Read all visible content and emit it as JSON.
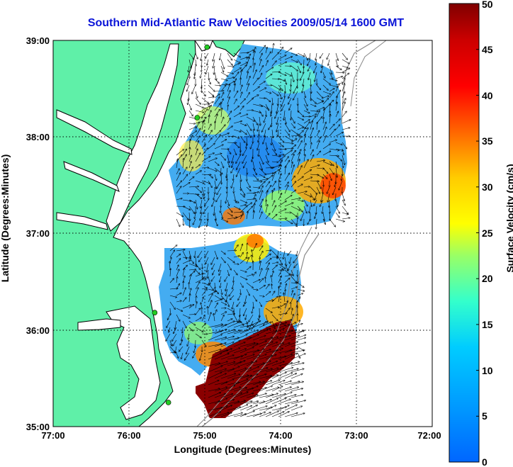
{
  "title": "Southern Mid-Atlantic Raw Velocities 2009/05/14 1600 GMT",
  "x_axis": {
    "label": "Longitude (Degrees:Minutes)",
    "ticks": [
      "77:00",
      "76:00",
      "75:00",
      "74:00",
      "73:00",
      "72:00"
    ]
  },
  "y_axis": {
    "label": "Latitude (Degrees:Minutes)",
    "ticks": [
      "39:00",
      "38:00",
      "37:00",
      "36:00",
      "35:00"
    ]
  },
  "colorbar": {
    "label": "Surface Velocity (cm/s)",
    "min": 0,
    "max": 50,
    "ticks": [
      "0",
      "5",
      "10",
      "15",
      "20",
      "25",
      "30",
      "35",
      "40",
      "45",
      "50"
    ],
    "colormap": "jet"
  },
  "map": {
    "lon_range": [
      -77,
      -72
    ],
    "lat_range": [
      35,
      39
    ],
    "land_color": "#5ff0a8",
    "grid": "dotted"
  },
  "stations": [
    {
      "lon": -74.97,
      "lat": 38.93
    },
    {
      "lon": -75.1,
      "lat": 38.2
    },
    {
      "lon": -75.66,
      "lat": 36.18
    },
    {
      "lon": -75.48,
      "lat": 35.25
    }
  ]
}
